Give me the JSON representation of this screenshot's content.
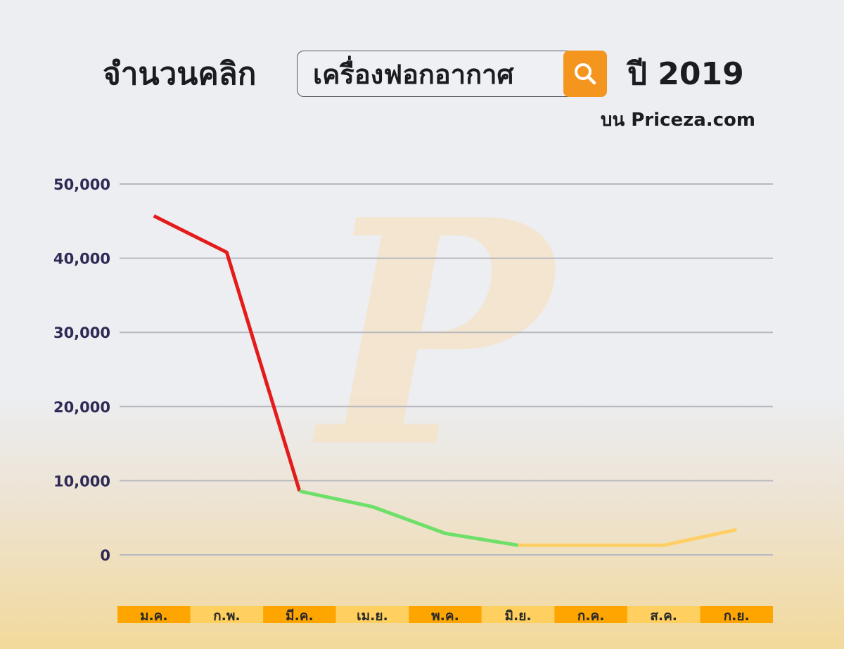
{
  "header": {
    "title_prefix": "จำนวนคลิก",
    "search_term": "เครื่องฟอกอากาศ",
    "title_suffix": "ปี 2019",
    "subtitle": "บน Priceza.com",
    "search_icon": "search-icon"
  },
  "watermark": {
    "letter": "P"
  },
  "colors": {
    "drop_segment": "#e51b1b",
    "mid_segment": "#6ee06a",
    "low_segment": "#ffcf66",
    "search_button": "#f4961e",
    "month_band_dark": "#ffa500",
    "month_band_light": "#ffd060"
  },
  "chart_data": {
    "type": "line",
    "categories": [
      "ม.ค.",
      "ก.พ.",
      "มี.ค.",
      "เม.ย.",
      "พ.ค.",
      "มิ.ย.",
      "ก.ค.",
      "ส.ค.",
      "ก.ย."
    ],
    "values": [
      45700,
      40800,
      8600,
      6500,
      2900,
      1300,
      1300,
      1300,
      3400
    ],
    "segments": [
      {
        "from": 0,
        "to": 2,
        "color": "#e51b1b"
      },
      {
        "from": 2,
        "to": 5,
        "color": "#6ee06a"
      },
      {
        "from": 5,
        "to": 8,
        "color": "#ffcf66"
      }
    ],
    "yticks": [
      "0",
      "10,000",
      "20,000",
      "30,000",
      "40,000",
      "50,000"
    ],
    "ylim": [
      0,
      50000
    ],
    "grid": true
  }
}
